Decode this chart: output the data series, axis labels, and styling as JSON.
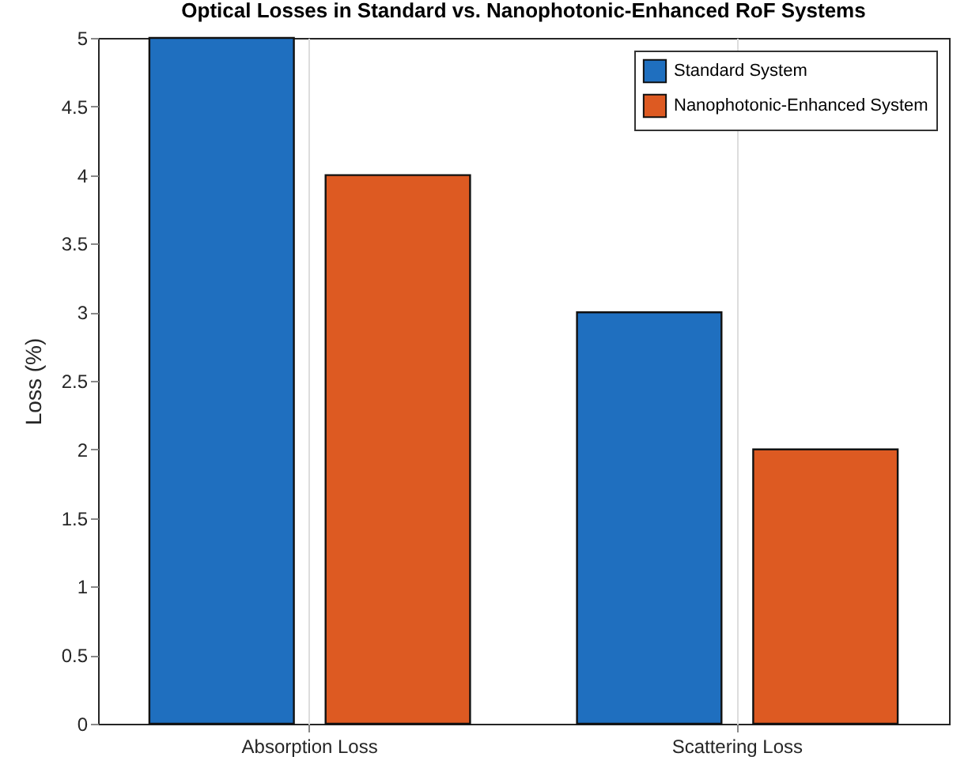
{
  "chart_data": {
    "type": "bar",
    "title": "Optical Losses in Standard vs. Nanophotonic-Enhanced RoF Systems",
    "ylabel": "Loss (%)",
    "categories": [
      "Absorption Loss",
      "Scattering Loss"
    ],
    "series": [
      {
        "name": "Standard System",
        "color": "#1f6fbf",
        "values": [
          5,
          3
        ]
      },
      {
        "name": "Nanophotonic-Enhanced System",
        "color": "#dd5a22",
        "values": [
          4,
          2
        ]
      }
    ],
    "ylim": [
      0,
      5
    ],
    "yticks": [
      0,
      0.5,
      1,
      1.5,
      2,
      2.5,
      3,
      3.5,
      4,
      4.5,
      5
    ],
    "grid": "x",
    "legend": "top right"
  }
}
